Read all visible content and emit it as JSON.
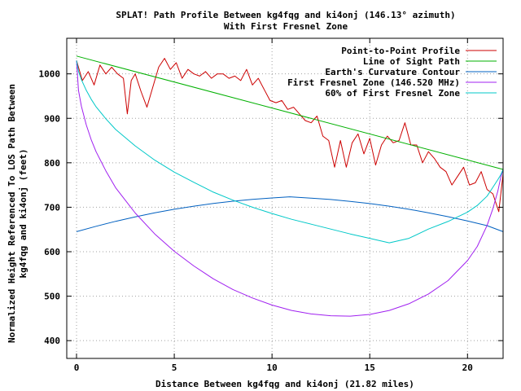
{
  "chart_data": {
    "type": "line",
    "title": "SPLAT! Path Profile Between kg4fqg and ki4onj (146.13° azimuth)",
    "subtitle": "With First Fresnel Zone",
    "xlabel": "Distance Between kg4fqg and ki4onj (21.82 miles)",
    "ylabel_line1": "Normalized Height Referenced To LOS Path Between",
    "ylabel_line2": "kg4fqg and ki4onj (feet)",
    "xlim": [
      -0.5,
      21.82
    ],
    "ylim": [
      360,
      1080
    ],
    "x_ticks": [
      0,
      5,
      10,
      15,
      20
    ],
    "y_ticks": [
      400,
      500,
      600,
      700,
      800,
      900,
      1000
    ],
    "x_tick_labels": [
      "0",
      "5",
      "10",
      "15",
      "20"
    ],
    "y_tick_labels": [
      "400",
      "500",
      "600",
      "700",
      "800",
      "900",
      "1000"
    ],
    "grid": true,
    "legend_position": "top-right",
    "series": [
      {
        "name": "Point-to-Point Profile",
        "color": "#cc0000",
        "x": [
          0,
          0.3,
          0.6,
          0.9,
          1.2,
          1.5,
          1.8,
          2.1,
          2.4,
          2.6,
          2.8,
          3.0,
          3.3,
          3.6,
          3.9,
          4.2,
          4.5,
          4.8,
          5.1,
          5.4,
          5.7,
          6.0,
          6.3,
          6.6,
          6.9,
          7.2,
          7.5,
          7.8,
          8.1,
          8.4,
          8.7,
          9.0,
          9.3,
          9.6,
          9.9,
          10.2,
          10.5,
          10.8,
          11.1,
          11.4,
          11.7,
          12.0,
          12.3,
          12.6,
          12.9,
          13.2,
          13.5,
          13.8,
          14.1,
          14.4,
          14.7,
          15.0,
          15.3,
          15.6,
          15.9,
          16.2,
          16.5,
          16.8,
          17.1,
          17.4,
          17.7,
          18.0,
          18.3,
          18.6,
          18.9,
          19.2,
          19.5,
          19.8,
          20.1,
          20.4,
          20.7,
          21.0,
          21.3,
          21.6,
          21.82
        ],
        "y": [
          1030,
          985,
          1005,
          975,
          1020,
          1000,
          1015,
          1000,
          990,
          910,
          985,
          1000,
          960,
          925,
          970,
          1015,
          1035,
          1010,
          1025,
          990,
          1010,
          1000,
          995,
          1005,
          990,
          1000,
          1000,
          990,
          995,
          985,
          1010,
          975,
          990,
          965,
          940,
          935,
          940,
          920,
          925,
          910,
          895,
          890,
          905,
          860,
          850,
          790,
          850,
          790,
          845,
          865,
          820,
          855,
          795,
          840,
          860,
          845,
          850,
          890,
          840,
          840,
          800,
          825,
          810,
          790,
          780,
          750,
          770,
          790,
          750,
          755,
          780,
          740,
          730,
          690,
          775
        ]
      },
      {
        "name": "Line of Sight Path",
        "color": "#00b000",
        "x": [
          0,
          21.82
        ],
        "y": [
          1040,
          785
        ]
      },
      {
        "name": "Earth's Curvature Contour",
        "color": "#0060c0",
        "x": [
          0,
          1,
          2,
          3,
          4,
          5,
          6,
          7,
          8,
          9,
          10,
          10.91,
          12,
          13,
          14,
          15,
          16,
          17,
          18,
          19,
          20,
          21,
          21.82
        ],
        "y": [
          645,
          657.1,
          668.3,
          678.3,
          687.5,
          695.5,
          702.4,
          708.5,
          713.6,
          717.7,
          721.0,
          723.4,
          720.4,
          717.4,
          713.2,
          708.3,
          702.4,
          695.4,
          687.5,
          678.7,
          669.1,
          658.6,
          645
        ]
      },
      {
        "name": "First Fresnel Zone (146.520 MHz)",
        "color": "#a020f0",
        "x": [
          0,
          0.1,
          0.25,
          0.5,
          0.75,
          1,
          1.5,
          2,
          3,
          4,
          5,
          6,
          7,
          8,
          9,
          10,
          11,
          12,
          13,
          14,
          15,
          16,
          17,
          18,
          19,
          20,
          20.5,
          21,
          21.3,
          21.55,
          21.7,
          21.82
        ],
        "y": [
          1030,
          963,
          927,
          885,
          852,
          825,
          782,
          744,
          687,
          640,
          601,
          568,
          539,
          515,
          496,
          480,
          468,
          460,
          456,
          455,
          459,
          468,
          483,
          505,
          535,
          580,
          612,
          659,
          697,
          736,
          767,
          785
        ]
      },
      {
        "name": "60% of First Fresnel Zone",
        "color": "#00c8c8",
        "x": [
          0,
          0.1,
          0.25,
          0.5,
          0.75,
          1,
          1.5,
          2,
          3,
          4,
          5,
          6,
          7,
          8,
          9,
          10,
          11,
          12,
          13,
          14,
          15,
          16,
          17,
          18,
          19,
          20,
          20.5,
          21,
          21.3,
          21.55,
          21.7,
          21.82
        ],
        "y": [
          1030,
          1006,
          987,
          963,
          943,
          926,
          899,
          875,
          838,
          806,
          779,
          756,
          734,
          716,
          700,
          686,
          673,
          662,
          651,
          640,
          630,
          620,
          630,
          651,
          668,
          689,
          704,
          725,
          745,
          762,
          773,
          785
        ]
      }
    ]
  }
}
